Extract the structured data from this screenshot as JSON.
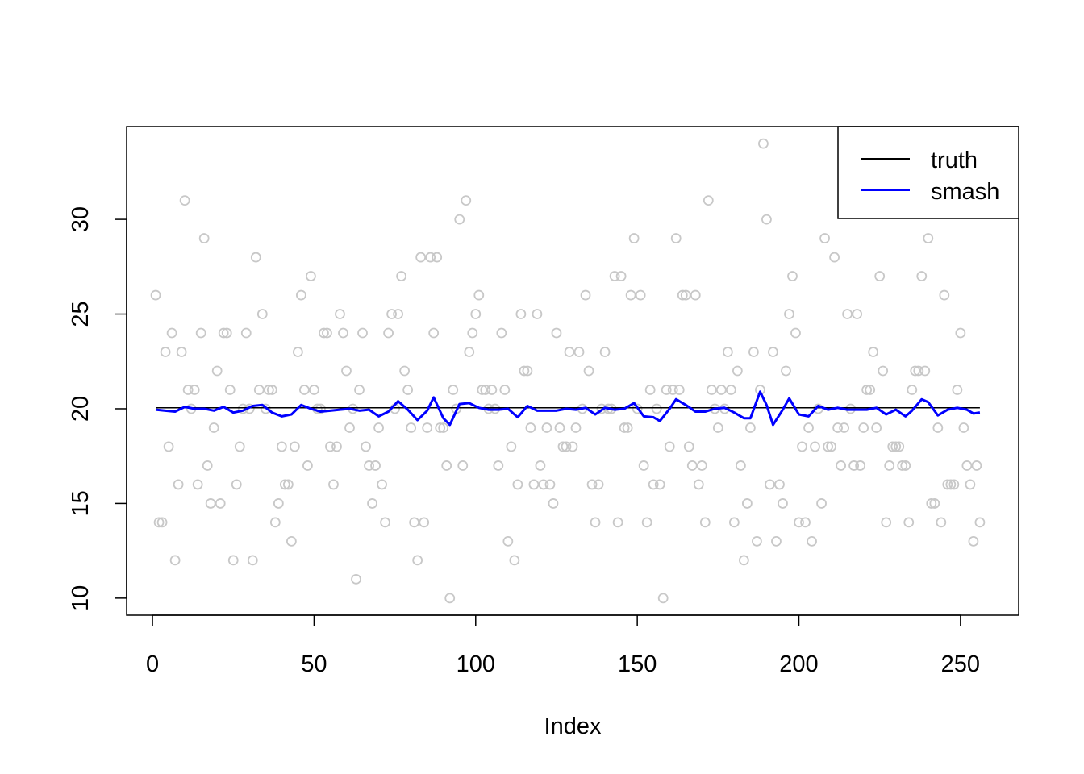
{
  "chart_data": {
    "type": "scatter",
    "title": "",
    "xlabel": "Index",
    "ylabel": "",
    "xlim": [
      -8,
      268
    ],
    "ylim": [
      9.1,
      34.9
    ],
    "xticks": [
      0,
      50,
      100,
      150,
      200,
      250
    ],
    "yticks": [
      10,
      15,
      20,
      25,
      30
    ],
    "grid": false,
    "legend_position": "top-right",
    "points": {
      "color": "#c8c8c8",
      "y": [
        26,
        14,
        14,
        23,
        18,
        24,
        12,
        16,
        23,
        31,
        21,
        20,
        21,
        16,
        24,
        29,
        17,
        15,
        19,
        22,
        15,
        24,
        24,
        21,
        12,
        16,
        18,
        20,
        24,
        20,
        12,
        28,
        21,
        25,
        20,
        21,
        21,
        14,
        15,
        18,
        16,
        16,
        13,
        18,
        23,
        26,
        21,
        17,
        27,
        21,
        20,
        20,
        24,
        24,
        18,
        16,
        18,
        25,
        24,
        22,
        19,
        20,
        11,
        21,
        24,
        18,
        17,
        15,
        17,
        19,
        16,
        14,
        24,
        25,
        20,
        25,
        27,
        22,
        21,
        19,
        14,
        12,
        28,
        14,
        19,
        28,
        24,
        28,
        19,
        19,
        17,
        10,
        21,
        20,
        30,
        17,
        31,
        23,
        24,
        25,
        26,
        21,
        21,
        20,
        21,
        20,
        17,
        24,
        21,
        13,
        18,
        12,
        16,
        25,
        22,
        22,
        19,
        16,
        25,
        17,
        16,
        19,
        16,
        15,
        24,
        19,
        18,
        18,
        23,
        18,
        19,
        23,
        20,
        26,
        22,
        16,
        14,
        16,
        20,
        23,
        20,
        20,
        27,
        14,
        27,
        19,
        19,
        26,
        29,
        20,
        26,
        17,
        14,
        21,
        16,
        20,
        16,
        10,
        21,
        18,
        21,
        29,
        21,
        26,
        26,
        18,
        17,
        26,
        16,
        17,
        14,
        31,
        21,
        20,
        19,
        21,
        20,
        23,
        21,
        14,
        22,
        17,
        12,
        15,
        19,
        23,
        13,
        21,
        34,
        30,
        16,
        23,
        13,
        16,
        15,
        22,
        25,
        27,
        24,
        14,
        18,
        14,
        19,
        13,
        18,
        20,
        15,
        29,
        18,
        18,
        28,
        19,
        17,
        19,
        25,
        20,
        17,
        25,
        17,
        19,
        21,
        21,
        23,
        19,
        27,
        22,
        14,
        17,
        18,
        18,
        18,
        17,
        17,
        14,
        21,
        22,
        22,
        27,
        22,
        29,
        15,
        15,
        19,
        14,
        26,
        16,
        16,
        16,
        21,
        24,
        19,
        17,
        16,
        13,
        17,
        14
      ]
    },
    "series": [
      {
        "name": "truth",
        "color": "#000000",
        "x": [
          1,
          256
        ],
        "y": [
          20.05,
          20.05
        ]
      },
      {
        "name": "smash",
        "color": "#0000ff",
        "x": [
          1,
          4,
          7,
          10,
          13,
          16,
          19,
          22,
          25,
          28,
          31,
          34,
          37,
          40,
          43,
          46,
          49,
          52,
          55,
          58,
          61,
          64,
          67,
          70,
          73,
          76,
          79,
          82,
          85,
          87,
          90,
          92,
          95,
          98,
          101,
          104,
          107,
          110,
          113,
          116,
          119,
          122,
          125,
          128,
          131,
          134,
          137,
          140,
          143,
          146,
          149,
          152,
          155,
          157,
          160,
          162,
          165,
          168,
          171,
          174,
          177,
          180,
          183,
          185,
          188,
          190,
          192,
          195,
          197,
          200,
          203,
          206,
          209,
          212,
          215,
          218,
          221,
          224,
          227,
          230,
          233,
          235,
          238,
          240,
          243,
          246,
          249,
          252,
          254,
          256
        ],
        "y": [
          19.95,
          19.9,
          19.85,
          20.1,
          20.0,
          20.0,
          19.9,
          20.1,
          19.8,
          19.9,
          20.15,
          20.2,
          19.8,
          19.6,
          19.7,
          20.2,
          20.0,
          19.85,
          19.9,
          19.95,
          20.0,
          19.9,
          19.95,
          19.6,
          19.85,
          20.4,
          19.95,
          19.4,
          19.9,
          20.6,
          19.5,
          19.15,
          20.25,
          20.3,
          20.05,
          19.95,
          19.95,
          20.0,
          19.55,
          20.15,
          19.9,
          19.9,
          19.9,
          20.0,
          19.95,
          20.05,
          19.7,
          20.05,
          19.95,
          20.0,
          20.3,
          19.6,
          19.55,
          19.35,
          20.0,
          20.5,
          20.2,
          19.85,
          19.85,
          20.0,
          20.05,
          19.8,
          19.5,
          19.5,
          20.9,
          20.2,
          19.15,
          19.95,
          20.55,
          19.7,
          19.6,
          20.15,
          19.95,
          20.05,
          19.95,
          19.95,
          19.95,
          20.05,
          19.7,
          19.95,
          19.6,
          19.9,
          20.5,
          20.35,
          19.65,
          19.95,
          20.05,
          19.95,
          19.75,
          19.8
        ]
      }
    ]
  }
}
